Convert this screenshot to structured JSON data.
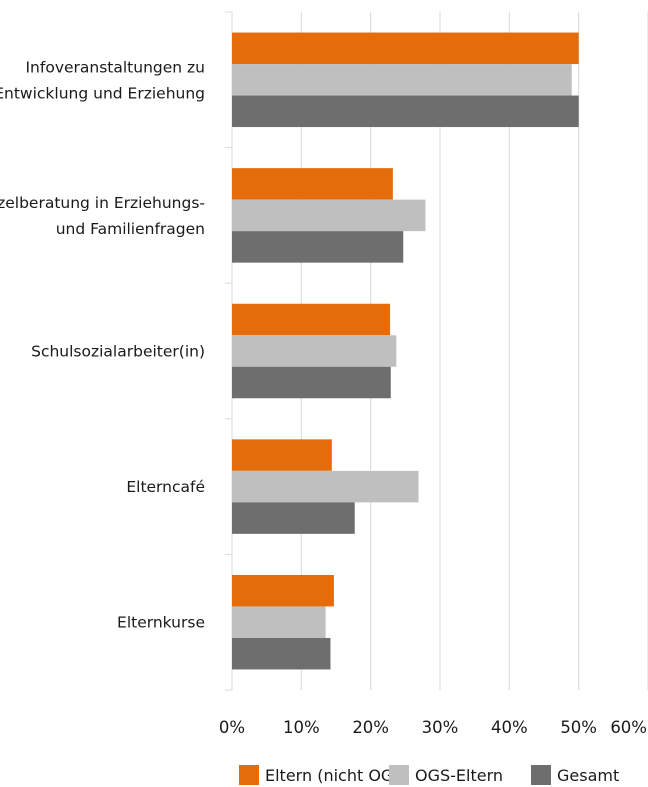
{
  "chart_data": {
    "type": "bar",
    "orientation": "horizontal",
    "title": "",
    "xlabel": "",
    "ylabel": "",
    "xlim": [
      0,
      60
    ],
    "xticks": [
      0,
      10,
      20,
      30,
      40,
      50,
      60
    ],
    "xtick_labels": [
      "0%",
      "10%",
      "20%",
      "30%",
      "40%",
      "50%",
      "60%"
    ],
    "grid": "vertical",
    "legend_position": "bottom",
    "categories": [
      [
        "Infoveranstaltungen zu",
        "Entwicklung und Erziehung"
      ],
      [
        "Einzelberatung in Erziehungs-",
        "und Familienfragen"
      ],
      [
        "Schulsozialarbeiter(in)"
      ],
      [
        "Elterncafé"
      ],
      [
        "Elternkurse"
      ]
    ],
    "series": [
      {
        "name": "Eltern (nicht OGS)",
        "color": "#E46C0A",
        "values": [
          50,
          23.2,
          22.8,
          14.4,
          14.7
        ]
      },
      {
        "name": "OGS-Eltern",
        "color": "#BFBFBF",
        "values": [
          49,
          27.9,
          23.7,
          26.9,
          13.5
        ]
      },
      {
        "name": "Gesamt",
        "color": "#6E6E6E",
        "values": [
          50,
          24.7,
          22.9,
          17.7,
          14.2
        ]
      }
    ]
  }
}
